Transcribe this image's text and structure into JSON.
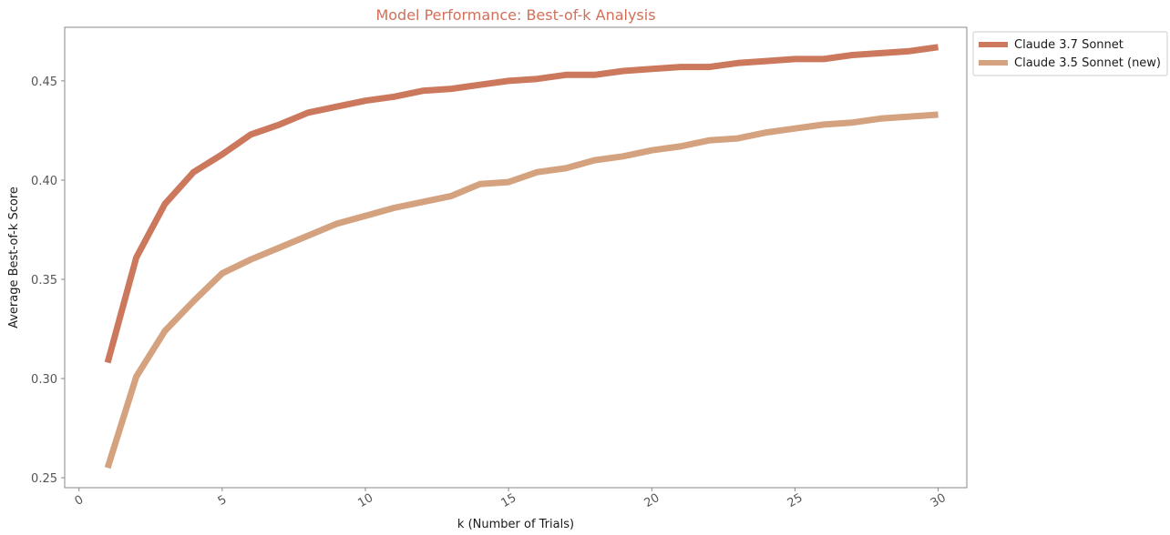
{
  "chart_data": {
    "type": "line",
    "title": "Model Performance: Best-of-k Analysis",
    "title_color": "#d0705a",
    "xlabel": "k (Number of Trials)",
    "ylabel": "Average Best-of-k Score",
    "xlim": [
      -0.5,
      31
    ],
    "ylim": [
      0.245,
      0.477
    ],
    "xticks": [
      0,
      5,
      10,
      15,
      20,
      25,
      30
    ],
    "xtick_labels": [
      "0",
      "5",
      "10",
      "15",
      "20",
      "25",
      "30"
    ],
    "yticks": [
      0.25,
      0.3,
      0.35,
      0.4,
      0.45
    ],
    "ytick_labels": [
      "0.25",
      "0.30",
      "0.35",
      "0.40",
      "0.45"
    ],
    "grid": false,
    "legend_position": "outside-top-right",
    "x": [
      1,
      2,
      3,
      4,
      5,
      6,
      7,
      8,
      9,
      10,
      11,
      12,
      13,
      14,
      15,
      16,
      17,
      18,
      19,
      20,
      21,
      22,
      23,
      24,
      25,
      26,
      27,
      28,
      29,
      30
    ],
    "series": [
      {
        "name": "Claude 3.7 Sonnet",
        "color": "#cc785c",
        "values": [
          0.308,
          0.361,
          0.388,
          0.404,
          0.413,
          0.423,
          0.428,
          0.434,
          0.437,
          0.44,
          0.442,
          0.445,
          0.446,
          0.448,
          0.45,
          0.451,
          0.453,
          0.453,
          0.455,
          0.456,
          0.457,
          0.457,
          0.459,
          0.46,
          0.461,
          0.461,
          0.463,
          0.464,
          0.465,
          0.467
        ]
      },
      {
        "name": "Claude 3.5 Sonnet (new)",
        "color": "#d4a27f",
        "values": [
          0.255,
          0.301,
          0.324,
          0.339,
          0.353,
          0.36,
          0.366,
          0.372,
          0.378,
          0.382,
          0.386,
          0.389,
          0.392,
          0.398,
          0.399,
          0.404,
          0.406,
          0.41,
          0.412,
          0.415,
          0.417,
          0.42,
          0.421,
          0.424,
          0.426,
          0.428,
          0.429,
          0.431,
          0.432,
          0.433
        ]
      }
    ]
  }
}
